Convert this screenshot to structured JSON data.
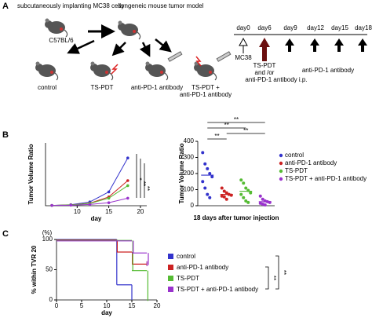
{
  "panel_labels": [
    "A",
    "B",
    "C"
  ],
  "panel_a": {
    "implant_text": "subcutaneously implanting MC38 cells",
    "model_text": "syngeneic mouse tumor model",
    "strain": "C57BL/6",
    "groups": [
      [
        "control"
      ],
      [
        "TS-PDT"
      ],
      [
        "anti-PD-1 antibody"
      ],
      [
        "TS-PDT +",
        "anti-PD-1 antibody"
      ]
    ],
    "timeline": {
      "days": [
        "day0",
        "day6",
        "day9",
        "day12",
        "day15",
        "day18"
      ],
      "inoculation": "MC38",
      "treatment": [
        "TS-PDT",
        "and /or",
        "anti-PD-1 antibody i.p."
      ],
      "maintenance": "anti-PD-1 antibody"
    }
  },
  "chart_data": [
    {
      "type": "line",
      "ylabel": "Tumor Volume Ratio",
      "xlabel": "day",
      "x": [
        6,
        9,
        12,
        15,
        18
      ],
      "xlim": [
        5,
        21
      ],
      "xticks": [
        10,
        15,
        20
      ],
      "ylim": [
        0,
        250
      ],
      "series": [
        {
          "name": "control",
          "color": "#3333cc",
          "values": [
            1,
            4,
            15,
            55,
            190
          ]
        },
        {
          "name": "anti-PD-1 antibody",
          "color": "#cc2222",
          "values": [
            1,
            3,
            10,
            35,
            100
          ]
        },
        {
          "name": "TS-PDT",
          "color": "#55bb33",
          "values": [
            1,
            3,
            9,
            30,
            80
          ]
        },
        {
          "name": "TS-PDT + anti-PD-1 antibody",
          "color": "#9933cc",
          "values": [
            1,
            2,
            5,
            12,
            30
          ]
        }
      ],
      "annotations": [
        "*",
        "**",
        "**"
      ]
    },
    {
      "type": "strip",
      "ylabel": "Tumor Volume Ratio",
      "xlabel": "18 days after tumor injection",
      "ylim": [
        0,
        400
      ],
      "yticks": [
        0,
        100,
        200,
        300,
        400
      ],
      "series": [
        {
          "name": "control",
          "color": "#3333cc",
          "values": [
            330,
            260,
            230,
            200,
            180,
            150,
            110,
            70,
            50
          ],
          "mean": 190
        },
        {
          "name": "anti-PD-1 antibody",
          "color": "#cc2222",
          "values": [
            110,
            90,
            80,
            70,
            65,
            60,
            55,
            40
          ],
          "mean": 70
        },
        {
          "name": "TS-PDT",
          "color": "#55bb33",
          "values": [
            160,
            140,
            110,
            95,
            80,
            70,
            50,
            30,
            20
          ],
          "mean": 90
        },
        {
          "name": "TS-PDT + anti-PD-1 antibody",
          "color": "#9933cc",
          "values": [
            60,
            40,
            30,
            25,
            20,
            15,
            10,
            5
          ],
          "mean": 25
        }
      ],
      "annotations": [
        "**",
        "**",
        "**",
        "**"
      ]
    },
    {
      "type": "step",
      "ylabel": "% within TVR 20",
      "yunit": "(%)",
      "xlabel": "day",
      "xlim": [
        0,
        20
      ],
      "xticks": [
        0,
        5,
        10,
        15,
        20
      ],
      "ylim": [
        0,
        100
      ],
      "yticks": [
        0,
        50,
        100
      ],
      "series": [
        {
          "name": "control",
          "color": "#3333cc",
          "x": [
            0,
            12,
            15
          ],
          "values": [
            100,
            25,
            0
          ]
        },
        {
          "name": "anti-PD-1 antibody",
          "color": "#cc2222",
          "x": [
            0,
            12,
            15,
            18
          ],
          "values": [
            100,
            80,
            60,
            60
          ]
        },
        {
          "name": "TS-PDT",
          "color": "#55bb33",
          "x": [
            0,
            15,
            18
          ],
          "values": [
            100,
            50,
            0
          ]
        },
        {
          "name": "TS-PDT + anti-PD-1 antibody",
          "color": "#9933cc",
          "x": [
            0,
            15,
            18
          ],
          "values": [
            100,
            80,
            60
          ]
        }
      ],
      "annotations": [
        "**",
        "**"
      ]
    }
  ]
}
